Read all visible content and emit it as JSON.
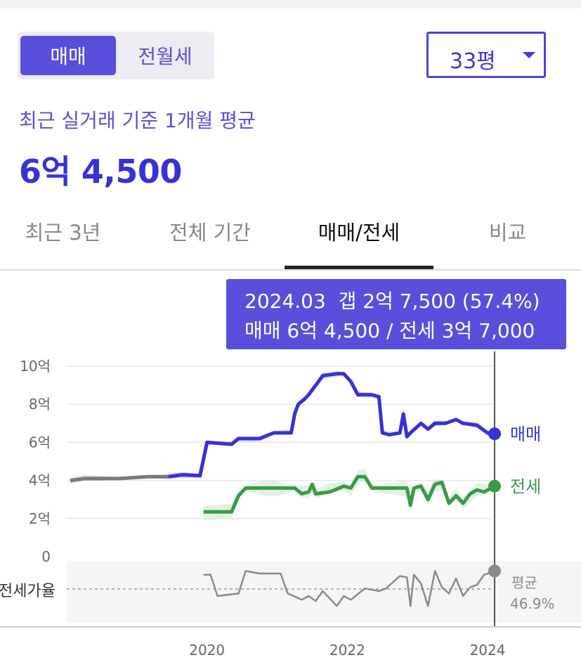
{
  "toggle": {
    "active": "매매",
    "inactive": "전월세"
  },
  "size_select": {
    "value": "33평"
  },
  "summary": {
    "subtitle": "최근 실거래 기준 1개월 평균",
    "price": "6억 4,500"
  },
  "tabs": [
    "최근 3년",
    "전체 기간",
    "매매/전세",
    "비교"
  ],
  "active_tab": "매매/전세",
  "tooltip": {
    "line1": "2024.03  갭 2억 7,500 (57.4%)",
    "line2": "매매 6억 4,500 / 전세 3억 7,000"
  },
  "colors": {
    "accent": "#5a4fdc",
    "sale": "#3732d4",
    "jeonse": "#3a9a4a",
    "ratio": "#8a8a8a"
  },
  "chart_data": {
    "type": "line",
    "xlabel": "",
    "ylabel": "",
    "x_ticks": [
      "2020",
      "2022",
      "2024"
    ],
    "y_ticks": [
      "10억",
      "8억",
      "6억",
      "4억",
      "2억",
      "0"
    ],
    "ylim": [
      0,
      10
    ],
    "y_unit": "억",
    "grid": true,
    "series": [
      {
        "name": "매매",
        "color": "#3732d4",
        "x": [
          2018.1,
          2018.3,
          2018.8,
          2019.2,
          2019.5,
          2019.7,
          2019.95,
          2020.05,
          2020.4,
          2020.5,
          2020.8,
          2021.0,
          2021.2,
          2021.25,
          2021.3,
          2021.35,
          2021.45,
          2021.5,
          2021.6,
          2021.7,
          2021.9,
          2022.0,
          2022.1,
          2022.2,
          2022.4,
          2022.5,
          2022.55,
          2022.65,
          2022.8,
          2022.85,
          2022.9,
          2022.95,
          2023.1,
          2023.2,
          2023.3,
          2023.45,
          2023.6,
          2023.7,
          2023.9,
          2024.05,
          2024.15
        ],
        "values": [
          4.0,
          4.1,
          4.1,
          4.2,
          4.2,
          4.3,
          4.25,
          6.0,
          5.9,
          6.2,
          6.2,
          6.5,
          6.5,
          6.5,
          7.5,
          8.0,
          8.3,
          8.5,
          9.0,
          9.5,
          9.6,
          9.6,
          9.2,
          8.5,
          8.5,
          8.4,
          6.5,
          6.4,
          6.5,
          7.5,
          6.3,
          6.5,
          7.0,
          6.7,
          7.0,
          7.0,
          7.2,
          7.0,
          6.9,
          6.5,
          6.45
        ]
      },
      {
        "name": "전세",
        "color": "#3a9a4a",
        "x": [
          2020.0,
          2020.4,
          2020.5,
          2020.6,
          2020.8,
          2021.0,
          2021.2,
          2021.3,
          2021.4,
          2021.5,
          2021.55,
          2021.6,
          2021.8,
          2022.0,
          2022.1,
          2022.2,
          2022.3,
          2022.4,
          2022.5,
          2022.9,
          2022.95,
          2023.0,
          2023.1,
          2023.2,
          2023.3,
          2023.4,
          2023.5,
          2023.6,
          2023.7,
          2023.8,
          2023.9,
          2024.0,
          2024.15
        ],
        "values": [
          2.35,
          2.35,
          3.2,
          3.6,
          3.6,
          3.6,
          3.6,
          3.6,
          3.3,
          3.4,
          3.8,
          3.3,
          3.4,
          3.7,
          3.6,
          4.2,
          4.2,
          3.6,
          3.6,
          3.6,
          2.7,
          3.6,
          3.7,
          3.0,
          3.8,
          3.9,
          2.8,
          3.2,
          2.8,
          3.3,
          3.5,
          3.4,
          3.7
        ]
      }
    ],
    "ratio": {
      "label": "전세가율",
      "avg_label": "평균",
      "avg_value": "46.9%",
      "x": [
        2020.0,
        2020.1,
        2020.2,
        2020.5,
        2020.6,
        2020.8,
        2021.1,
        2021.2,
        2021.4,
        2021.5,
        2021.6,
        2021.7,
        2021.9,
        2022.0,
        2022.1,
        2022.3,
        2022.5,
        2022.6,
        2022.8,
        2022.9,
        2022.95,
        2023.0,
        2023.1,
        2023.2,
        2023.3,
        2023.4,
        2023.5,
        2023.6,
        2023.7,
        2023.8,
        2023.9,
        2024.0,
        2024.15
      ],
      "values": [
        55,
        55,
        38,
        40,
        58,
        56,
        56,
        40,
        35,
        38,
        34,
        42,
        30,
        38,
        35,
        44,
        42,
        44,
        54,
        53,
        30,
        55,
        48,
        30,
        58,
        45,
        40,
        52,
        38,
        45,
        47,
        55,
        58
      ]
    },
    "annotations": [
      {
        "x": "2024.03",
        "gap": "2억 7,500",
        "gap_pct": "57.4%",
        "sale": "6억 4,500",
        "jeonse": "3억 7,000"
      }
    ]
  }
}
